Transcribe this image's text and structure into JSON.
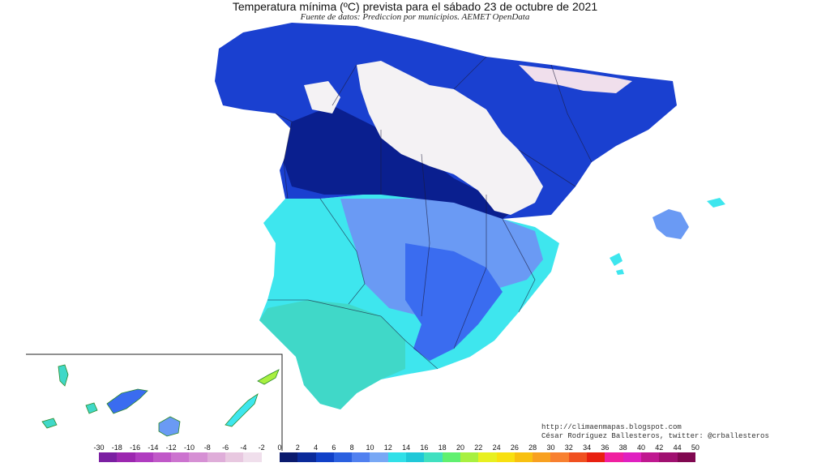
{
  "header": {
    "title": "Temperatura mínima (ºC) prevista para el sábado 23 de octubre de 2021",
    "subtitle": "Fuente de datos: Prediccion por municipios. AEMET OpenData"
  },
  "credits": {
    "url": "http://climaenmapas.blogspot.com",
    "author": "César Rodríguez Ballesteros, twitter: @crballesteros"
  },
  "legend": {
    "ticks": [
      "-30",
      "-18",
      "-16",
      "-14",
      "-12",
      "-10",
      "-8",
      "-6",
      "-4",
      "-2",
      "0",
      "2",
      "4",
      "6",
      "8",
      "10",
      "12",
      "14",
      "16",
      "18",
      "20",
      "22",
      "24",
      "26",
      "28",
      "30",
      "32",
      "34",
      "36",
      "38",
      "40",
      "42",
      "44",
      "50"
    ],
    "colors": [
      "#7b1fa2",
      "#9c27b0",
      "#b03cc0",
      "#c058c8",
      "#cc73cf",
      "#d690d4",
      "#dfadd9",
      "#e8c8e0",
      "#f0dfec",
      "#ffffff",
      "#0a1a6e",
      "#0a2a9a",
      "#1040c8",
      "#2a60e0",
      "#5080f0",
      "#78a8f5",
      "#30e0e8",
      "#20c8d8",
      "#40e0c0",
      "#60f070",
      "#a8f040",
      "#e8f020",
      "#f8e010",
      "#f8c010",
      "#f8a020",
      "#f88030",
      "#f05020",
      "#e82010",
      "#f020a0",
      "#e020c0",
      "#c01890",
      "#a01070",
      "#800850"
    ]
  },
  "colors": {
    "cold_white": "#f4f2f4",
    "deep_blue": "#0a1f8f",
    "blue": "#1a40d0",
    "mid_blue": "#3a6cf0",
    "light_blue": "#6a9af4",
    "cyan": "#3ee6ee",
    "aqua": "#40d8c8"
  }
}
